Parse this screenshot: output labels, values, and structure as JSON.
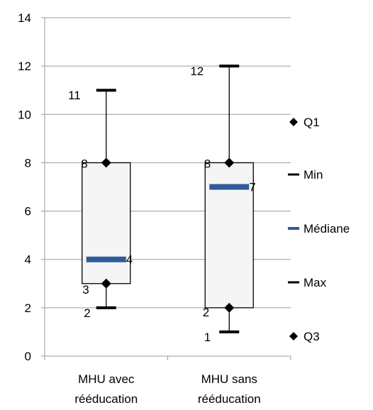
{
  "chart_data": {
    "type": "box",
    "title": "",
    "xlabel": "",
    "ylabel": "",
    "ylim": [
      0,
      14
    ],
    "yticks": [
      0,
      2,
      4,
      6,
      8,
      10,
      12,
      14
    ],
    "grid": true,
    "legend_position": "right",
    "categories": [
      [
        "MHU avec",
        "rééducation"
      ],
      [
        "MHU sans",
        "rééducation"
      ]
    ],
    "series": [
      {
        "name": "MHU avec rééducation",
        "min": 2,
        "q1": 3,
        "median": 4,
        "q3": 8,
        "max": 11
      },
      {
        "name": "MHU sans rééducation",
        "min": 1,
        "q1": 2,
        "median": 7,
        "q3": 8,
        "max": 12
      }
    ],
    "data_labels": [
      [
        "2",
        "3",
        "4",
        "8",
        "11"
      ],
      [
        "1",
        "2",
        "7",
        "8",
        "12"
      ]
    ],
    "legend": [
      {
        "key": "q1",
        "label": "Q1",
        "marker": "diamond"
      },
      {
        "key": "min",
        "label": "Min",
        "marker": "dash"
      },
      {
        "key": "median",
        "label": "Médiane",
        "marker": "bar"
      },
      {
        "key": "max",
        "label": "Max",
        "marker": "dash"
      },
      {
        "key": "q3",
        "label": "Q3",
        "marker": "diamond"
      }
    ],
    "colors": {
      "median": "#2E5C9A",
      "box_fill": "#F5F5F5",
      "box_border": "#000000",
      "grid": "#9A9A9A",
      "marker": "#000000"
    }
  }
}
